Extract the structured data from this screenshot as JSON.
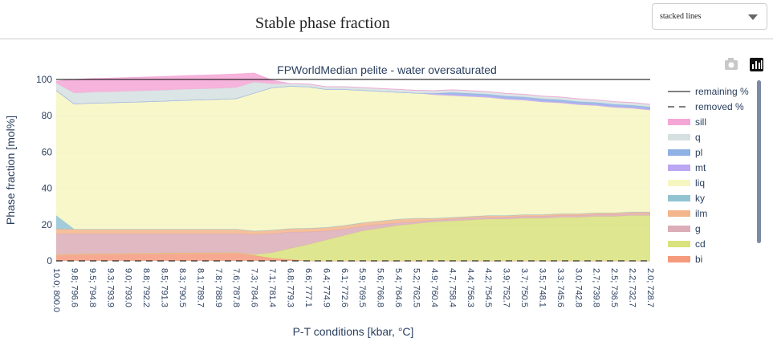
{
  "header": {
    "title": "Stable phase fraction",
    "dropdown": "stacked lines"
  },
  "chart_data": {
    "type": "stacked-area",
    "title": "FPWorldMedian pelite - water oversaturated",
    "x_label": "P-T conditions [kbar, °C]",
    "y_label": "Phase fraction [mol%]",
    "categories": [
      "10.0; 800.0",
      "9.8; 796.6",
      "9.5; 794.8",
      "9.3; 793.9",
      "9.0; 793.0",
      "8.8; 792.2",
      "8.5; 791.3",
      "8.3; 790.5",
      "8.1; 789.7",
      "7.8; 788.9",
      "7.6; 787.8",
      "7.3; 784.6",
      "7.1; 781.4",
      "6.8; 779.3",
      "6.6; 777.1",
      "6.4; 774.9",
      "6.1; 772.6",
      "5.9; 769.5",
      "5.6; 766.8",
      "5.4; 764.6",
      "5.2; 762.5",
      "4.9; 760.4",
      "4.7; 758.4",
      "4.4; 756.3",
      "4.2; 754.5",
      "3.9; 752.7",
      "3.7; 750.5",
      "3.5; 748.1",
      "3.3; 745.6",
      "3.0; 742.8",
      "2.7; 739.8",
      "2.5; 736.5",
      "2.2; 732.7",
      "2.0; 728.7"
    ],
    "ylim": [
      0,
      100
    ],
    "yticks": [
      0,
      20,
      40,
      60,
      80,
      100
    ],
    "series": [
      {
        "name": "remaining %",
        "kind": "line",
        "dash": false,
        "color": "#000000",
        "values": [
          100,
          100,
          100,
          100,
          100,
          100,
          100,
          100,
          100,
          100,
          100,
          100,
          100,
          100,
          100,
          100,
          100,
          100,
          100,
          100,
          100,
          100,
          100,
          100,
          100,
          100,
          100,
          100,
          100,
          100,
          100,
          100,
          100,
          100
        ]
      },
      {
        "name": "removed %",
        "kind": "line",
        "dash": true,
        "color": "#000000",
        "values": [
          0,
          0,
          0,
          0,
          0,
          0,
          0,
          0,
          0,
          0,
          0,
          0,
          0,
          0,
          0,
          0,
          0,
          0,
          0,
          0,
          0,
          0,
          0,
          0,
          0,
          0,
          0,
          0,
          0,
          0,
          0,
          0,
          0,
          0
        ]
      },
      {
        "name": "sill",
        "kind": "area",
        "color": "#f4a7d6",
        "values": [
          1,
          7.5,
          7.5,
          7.5,
          7.5,
          7.5,
          7.5,
          7.5,
          7.5,
          7.5,
          7.5,
          5,
          2,
          0,
          0,
          0,
          0,
          0,
          0,
          0,
          0,
          0,
          0,
          0,
          0,
          0,
          0,
          0,
          0,
          0,
          0,
          0,
          0,
          0
        ]
      },
      {
        "name": "q",
        "kind": "area",
        "color": "#d6e0e0",
        "values": [
          4,
          6,
          6,
          6,
          6,
          6,
          6,
          6,
          6,
          6,
          6,
          6,
          2,
          1.5,
          1.5,
          1.5,
          1.5,
          1.5,
          1.5,
          1.5,
          1.5,
          1.5,
          1.5,
          1.5,
          1.5,
          1.5,
          1.5,
          1.5,
          1.5,
          1.5,
          1.5,
          1.5,
          1.5,
          1.5
        ]
      },
      {
        "name": "pl",
        "kind": "area",
        "color": "#8fb1e3",
        "values": [
          0,
          0,
          0,
          0,
          0,
          0,
          0,
          0,
          0,
          0,
          0,
          0,
          0,
          0,
          0,
          0,
          0,
          0,
          0,
          0,
          0,
          0,
          1,
          1,
          1,
          1,
          1,
          1,
          1,
          1,
          1,
          1,
          1,
          1
        ]
      },
      {
        "name": "mt",
        "kind": "area",
        "color": "#bba7f2",
        "values": [
          0,
          0,
          0,
          0,
          0,
          0,
          0,
          0,
          0,
          0,
          0,
          0,
          0,
          0,
          0,
          0,
          0,
          0,
          0,
          0,
          0,
          0.8,
          0.8,
          0.8,
          0.8,
          0.8,
          0.8,
          0.8,
          0.8,
          0.8,
          0.8,
          0.8,
          0.8,
          0.8
        ]
      },
      {
        "name": "liq",
        "kind": "area",
        "color": "#f6f6c1",
        "values": [
          69,
          69,
          69.5,
          69.7,
          70,
          70.3,
          70.6,
          71,
          71.3,
          71.6,
          72,
          76,
          78.5,
          78.5,
          78,
          76,
          75,
          73,
          71.5,
          70,
          69,
          68,
          67,
          66,
          65,
          64,
          63,
          62,
          61,
          60,
          59,
          58,
          57,
          56
        ]
      },
      {
        "name": "ky",
        "kind": "area",
        "color": "#92c3d3",
        "values": [
          7.5,
          0,
          0,
          0,
          0,
          0,
          0,
          0,
          0,
          0,
          0,
          0,
          0,
          0,
          0,
          0,
          0,
          0,
          0,
          0,
          0,
          0,
          0,
          0,
          0,
          0,
          0,
          0,
          0,
          0,
          0,
          0,
          0,
          0
        ]
      },
      {
        "name": "ilm",
        "kind": "area",
        "color": "#f3b58b",
        "values": [
          2.5,
          2.5,
          2.5,
          2.5,
          2.5,
          2.5,
          2.5,
          2.5,
          2.5,
          2.5,
          2.5,
          2,
          2,
          2,
          2,
          2,
          2,
          2,
          2,
          2,
          2,
          1,
          1,
          1,
          1,
          1,
          1,
          1,
          1,
          1,
          1,
          1,
          1,
          1
        ]
      },
      {
        "name": "g",
        "kind": "area",
        "color": "#dbadb8",
        "values": [
          11.5,
          11.3,
          11.1,
          11,
          10.9,
          10.8,
          10.7,
          10.6,
          10.5,
          10.5,
          10.4,
          11,
          10.5,
          9,
          7,
          5,
          3.5,
          2.5,
          2,
          1.5,
          1,
          1,
          1,
          1,
          1,
          1,
          1,
          1,
          1,
          1,
          1,
          1,
          1,
          1
        ]
      },
      {
        "name": "cd",
        "kind": "area",
        "color": "#d9e27c",
        "values": [
          0,
          0,
          0,
          0,
          0,
          0,
          0,
          0,
          0,
          0,
          0,
          0.5,
          3,
          6,
          9,
          11.5,
          14,
          16.5,
          18,
          19.5,
          20.5,
          21.5,
          22,
          22.5,
          23,
          23,
          23.5,
          23.5,
          24,
          24,
          24.5,
          24.5,
          25,
          25
        ]
      },
      {
        "name": "bi",
        "kind": "area",
        "color": "#f59a7c",
        "values": [
          3.5,
          3.7,
          3.9,
          4,
          4.1,
          4.2,
          4.3,
          4.4,
          4.5,
          4.5,
          4.6,
          3,
          1.5,
          0.8,
          0,
          0,
          0,
          0,
          0,
          0,
          0,
          0,
          0,
          0,
          0,
          0,
          0,
          0,
          0,
          0,
          0,
          0,
          0,
          0
        ]
      }
    ]
  }
}
